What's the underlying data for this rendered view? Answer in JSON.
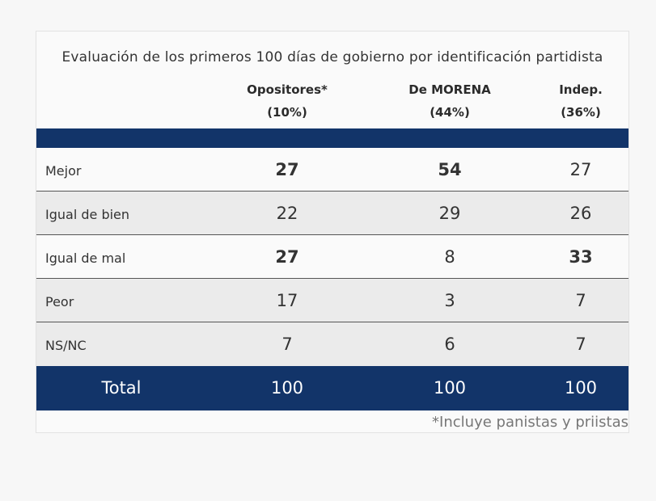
{
  "chart_data": {
    "type": "table",
    "title": "Evaluación de los primeros 100 días de gobierno por identificación partidista",
    "columns": [
      {
        "name": "Opositores*",
        "share": "(10%)"
      },
      {
        "name": "De MORENA",
        "share": "(44%)"
      },
      {
        "name": "Indep.",
        "share": "(36%)"
      }
    ],
    "rows": [
      {
        "label": "Mejor",
        "values": [
          "27",
          "54",
          "27"
        ],
        "bold": [
          true,
          true,
          false
        ]
      },
      {
        "label": "Igual de bien",
        "values": [
          "22",
          "29",
          "26"
        ],
        "bold": [
          false,
          false,
          false
        ]
      },
      {
        "label": "Igual de mal",
        "values": [
          "27",
          "8",
          "33"
        ],
        "bold": [
          true,
          false,
          true
        ]
      },
      {
        "label": "Peor",
        "values": [
          "17",
          "3",
          "7"
        ],
        "bold": [
          false,
          false,
          false
        ]
      },
      {
        "label": "NS/NC",
        "values": [
          "7",
          "6",
          "7"
        ],
        "bold": [
          false,
          false,
          false
        ]
      }
    ],
    "total": {
      "label": "Total",
      "values": [
        "100",
        "100",
        "100"
      ]
    },
    "footnote": "*Incluye panistas y priistas"
  },
  "colors": {
    "band": "#123469",
    "alt_row": "#ebebeb"
  }
}
